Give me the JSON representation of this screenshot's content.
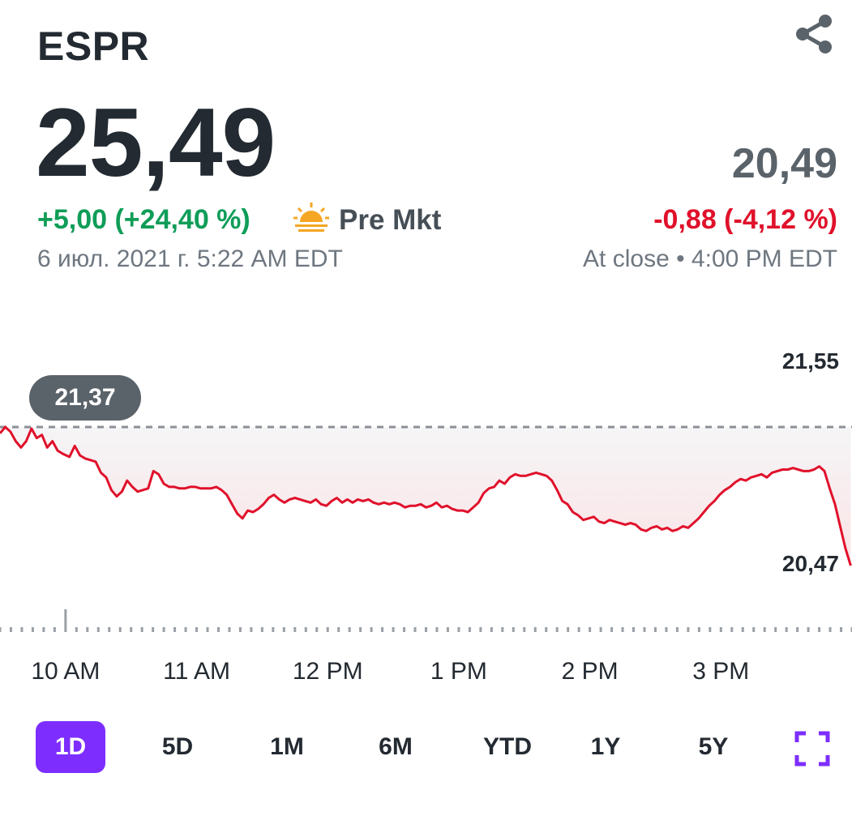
{
  "header": {
    "ticker": "ESPR",
    "share_icon": "share-icon"
  },
  "quote": {
    "price": "25,49",
    "change": "+5,00 (+24,40 %)",
    "session_icon": "sunrise-icon",
    "session_label": "Pre Mkt",
    "timestamp": "6 июл. 2021 г. 5:22 AM EDT"
  },
  "close": {
    "price": "20,49",
    "change": "-0,88 (-4,12 %)",
    "timestamp": "At close • 4:00 PM EDT"
  },
  "colors": {
    "positive": "#0f9d58",
    "negative": "#e0112b",
    "accent": "#7d2eff",
    "line": "#e0112b"
  },
  "chart_data": {
    "type": "line",
    "y_high_label": "21,55",
    "y_low_label": "20,47",
    "reference_label": "21,37",
    "reference_value": 21.37,
    "ylim": [
      20.47,
      21.55
    ],
    "x_tick_labels": [
      "10 AM",
      "11 AM",
      "12 PM",
      "1 PM",
      "2 PM",
      "3 PM"
    ],
    "x_tick_times": [
      10,
      11,
      12,
      13,
      14,
      15
    ],
    "xlim": [
      9.5,
      16
    ],
    "series": [
      {
        "x": [
          9.5,
          9.54,
          9.58,
          9.62,
          9.66,
          9.7,
          9.74,
          9.78,
          9.82,
          9.86,
          9.9,
          9.94,
          9.98,
          10.03,
          10.07,
          10.11,
          10.15,
          10.19,
          10.23,
          10.27,
          10.31,
          10.35,
          10.39,
          10.43,
          10.47,
          10.51,
          10.55,
          10.59,
          10.63,
          10.67,
          10.71,
          10.75,
          10.79,
          10.83,
          10.87,
          10.91,
          10.95,
          10.99,
          11.03,
          11.07,
          11.11,
          11.15,
          11.19,
          11.23,
          11.27,
          11.31,
          11.35,
          11.39,
          11.43,
          11.47,
          11.51,
          11.55,
          11.59,
          11.63,
          11.67,
          11.71,
          11.75,
          11.79,
          11.83,
          11.87,
          11.91,
          11.95,
          11.99,
          12.03,
          12.07,
          12.11,
          12.15,
          12.19,
          12.23,
          12.27,
          12.31,
          12.35,
          12.39,
          12.43,
          12.47,
          12.51,
          12.55,
          12.59,
          12.63,
          12.67,
          12.71,
          12.75,
          12.79,
          12.83,
          12.87,
          12.91,
          12.95,
          12.99,
          13.03,
          13.07,
          13.11,
          13.15,
          13.19,
          13.23,
          13.27,
          13.31,
          13.35,
          13.39,
          13.43,
          13.47,
          13.51,
          13.55,
          13.59,
          13.63,
          13.67,
          13.71,
          13.75,
          13.79,
          13.83,
          13.87,
          13.91,
          13.95,
          13.99,
          14.03,
          14.07,
          14.11,
          14.15,
          14.19,
          14.23,
          14.27,
          14.31,
          14.35,
          14.39,
          14.43,
          14.47,
          14.51,
          14.55,
          14.59,
          14.63,
          14.67,
          14.71,
          14.75,
          14.79,
          14.83,
          14.87,
          14.91,
          14.95,
          14.99,
          15.03,
          15.07,
          15.11,
          15.15,
          15.19,
          15.23,
          15.27,
          15.31,
          15.35,
          15.39,
          15.43,
          15.47,
          15.51,
          15.55,
          15.59,
          15.63,
          15.67,
          15.71,
          15.75,
          15.79,
          15.83,
          15.87,
          15.91,
          15.95,
          15.99
        ],
        "y": [
          21.33,
          21.37,
          21.34,
          21.28,
          21.24,
          21.28,
          21.36,
          21.3,
          21.32,
          21.24,
          21.28,
          21.22,
          21.2,
          21.18,
          21.25,
          21.19,
          21.17,
          21.16,
          21.15,
          21.08,
          21.05,
          20.97,
          20.93,
          20.96,
          21.03,
          20.99,
          20.96,
          20.97,
          20.98,
          21.09,
          21.07,
          21.01,
          20.99,
          20.99,
          20.98,
          20.98,
          20.99,
          20.99,
          20.98,
          20.98,
          20.98,
          20.99,
          20.97,
          20.94,
          20.88,
          20.82,
          20.79,
          20.84,
          20.83,
          20.85,
          20.88,
          20.92,
          20.94,
          20.91,
          20.89,
          20.91,
          20.92,
          20.91,
          20.9,
          20.89,
          20.91,
          20.88,
          20.87,
          20.9,
          20.92,
          20.89,
          20.91,
          20.89,
          20.91,
          20.9,
          20.91,
          20.89,
          20.88,
          20.89,
          20.88,
          20.89,
          20.88,
          20.86,
          20.87,
          20.87,
          20.88,
          20.86,
          20.87,
          20.89,
          20.86,
          20.87,
          20.85,
          20.84,
          20.84,
          20.83,
          20.86,
          20.89,
          20.95,
          20.98,
          20.99,
          21.03,
          21.01,
          21.05,
          21.07,
          21.06,
          21.06,
          21.07,
          21.08,
          21.07,
          21.06,
          21.03,
          20.97,
          20.9,
          20.88,
          20.83,
          20.81,
          20.78,
          20.79,
          20.8,
          20.77,
          20.76,
          20.78,
          20.77,
          20.76,
          20.75,
          20.76,
          20.75,
          20.72,
          20.71,
          20.73,
          20.74,
          20.72,
          20.73,
          20.71,
          20.72,
          20.74,
          20.73,
          20.76,
          20.79,
          20.83,
          20.87,
          20.9,
          20.94,
          20.97,
          20.99,
          21.02,
          21.04,
          21.03,
          21.05,
          21.06,
          21.07,
          21.05,
          21.08,
          21.09,
          21.1,
          21.1,
          21.11,
          21.1,
          21.09,
          21.09,
          21.1,
          21.12,
          21.09,
          20.98,
          20.88,
          20.74,
          20.6,
          20.49
        ]
      }
    ]
  },
  "ranges": {
    "items": [
      "1D",
      "5D",
      "1M",
      "6M",
      "YTD",
      "1Y",
      "5Y"
    ],
    "active": "1D",
    "expand_icon": "fullscreen-icon"
  }
}
